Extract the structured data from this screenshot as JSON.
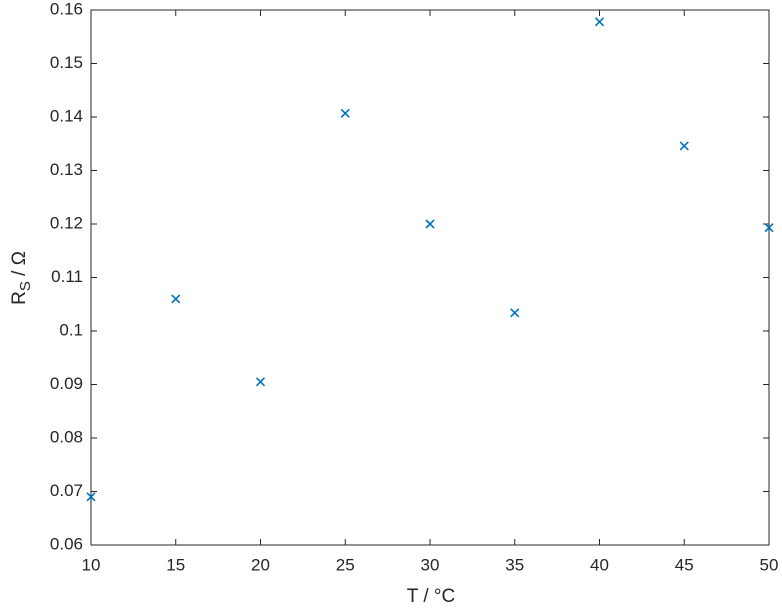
{
  "chart_data": {
    "type": "scatter",
    "xlabel": "T / °C",
    "ylabel_parts": [
      "R",
      "S",
      " / Ω"
    ],
    "x": [
      10,
      15,
      20,
      25,
      30,
      35,
      40,
      45,
      50
    ],
    "series": [
      {
        "color": "#0072bd",
        "values": [
          0.069,
          0.106,
          0.0905,
          0.1407,
          0.12,
          0.1034,
          0.1578,
          0.1346,
          0.1193
        ]
      }
    ],
    "xlim": [
      10,
      50
    ],
    "xticks": [
      10,
      15,
      20,
      25,
      30,
      35,
      40,
      45,
      50
    ],
    "ylim": [
      0.06,
      0.16
    ],
    "yticks": [
      0.06,
      0.07,
      0.08,
      0.09,
      0.1,
      0.11,
      0.12,
      0.13,
      0.14,
      0.15,
      0.16
    ]
  }
}
